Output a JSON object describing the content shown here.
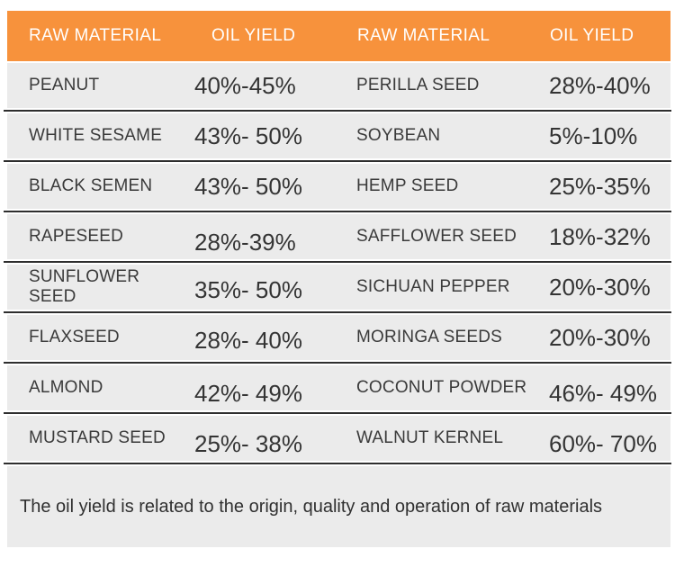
{
  "chart_data": {
    "type": "table",
    "columns": [
      "RAW MATERIAL",
      "OIL YIELD",
      "RAW MATERIAL",
      "OIL YIELD"
    ],
    "rows": [
      [
        "PEANUT",
        "40%-45%",
        "PERILLA SEED",
        "28%-40%"
      ],
      [
        "WHITE SESAME",
        "43%- 50%",
        "SOYBEAN",
        "5%-10%"
      ],
      [
        "BLACK SEMEN",
        "43%- 50%",
        "HEMP SEED",
        "25%-35%"
      ],
      [
        "RAPESEED",
        "28%-39%",
        "SAFFLOWER SEED",
        "18%-32%"
      ],
      [
        "SUNFLOWER SEED",
        "35%- 50%",
        "SICHUAN PEPPER",
        "20%-30%"
      ],
      [
        "FLAXSEED",
        "28%- 40%",
        "MORINGA SEEDS",
        "20%-30%"
      ],
      [
        "ALMOND",
        "42%- 49%",
        "COCONUT POWDER",
        "46%- 49%"
      ],
      [
        "MUSTARD SEED",
        "25%- 38%",
        "WALNUT KERNEL",
        "60%- 70%"
      ]
    ],
    "note": "The oil yield is related to the origin, quality and operation of raw materials",
    "layout": {
      "grid": "off",
      "legend": "none"
    }
  },
  "colors": {
    "header_bg": "#F7923C",
    "row_bg": "#EBEBEB",
    "separator_line": "#2E2E2E",
    "header_text": "#FFFFFF",
    "body_text": "#3A3A3A"
  }
}
